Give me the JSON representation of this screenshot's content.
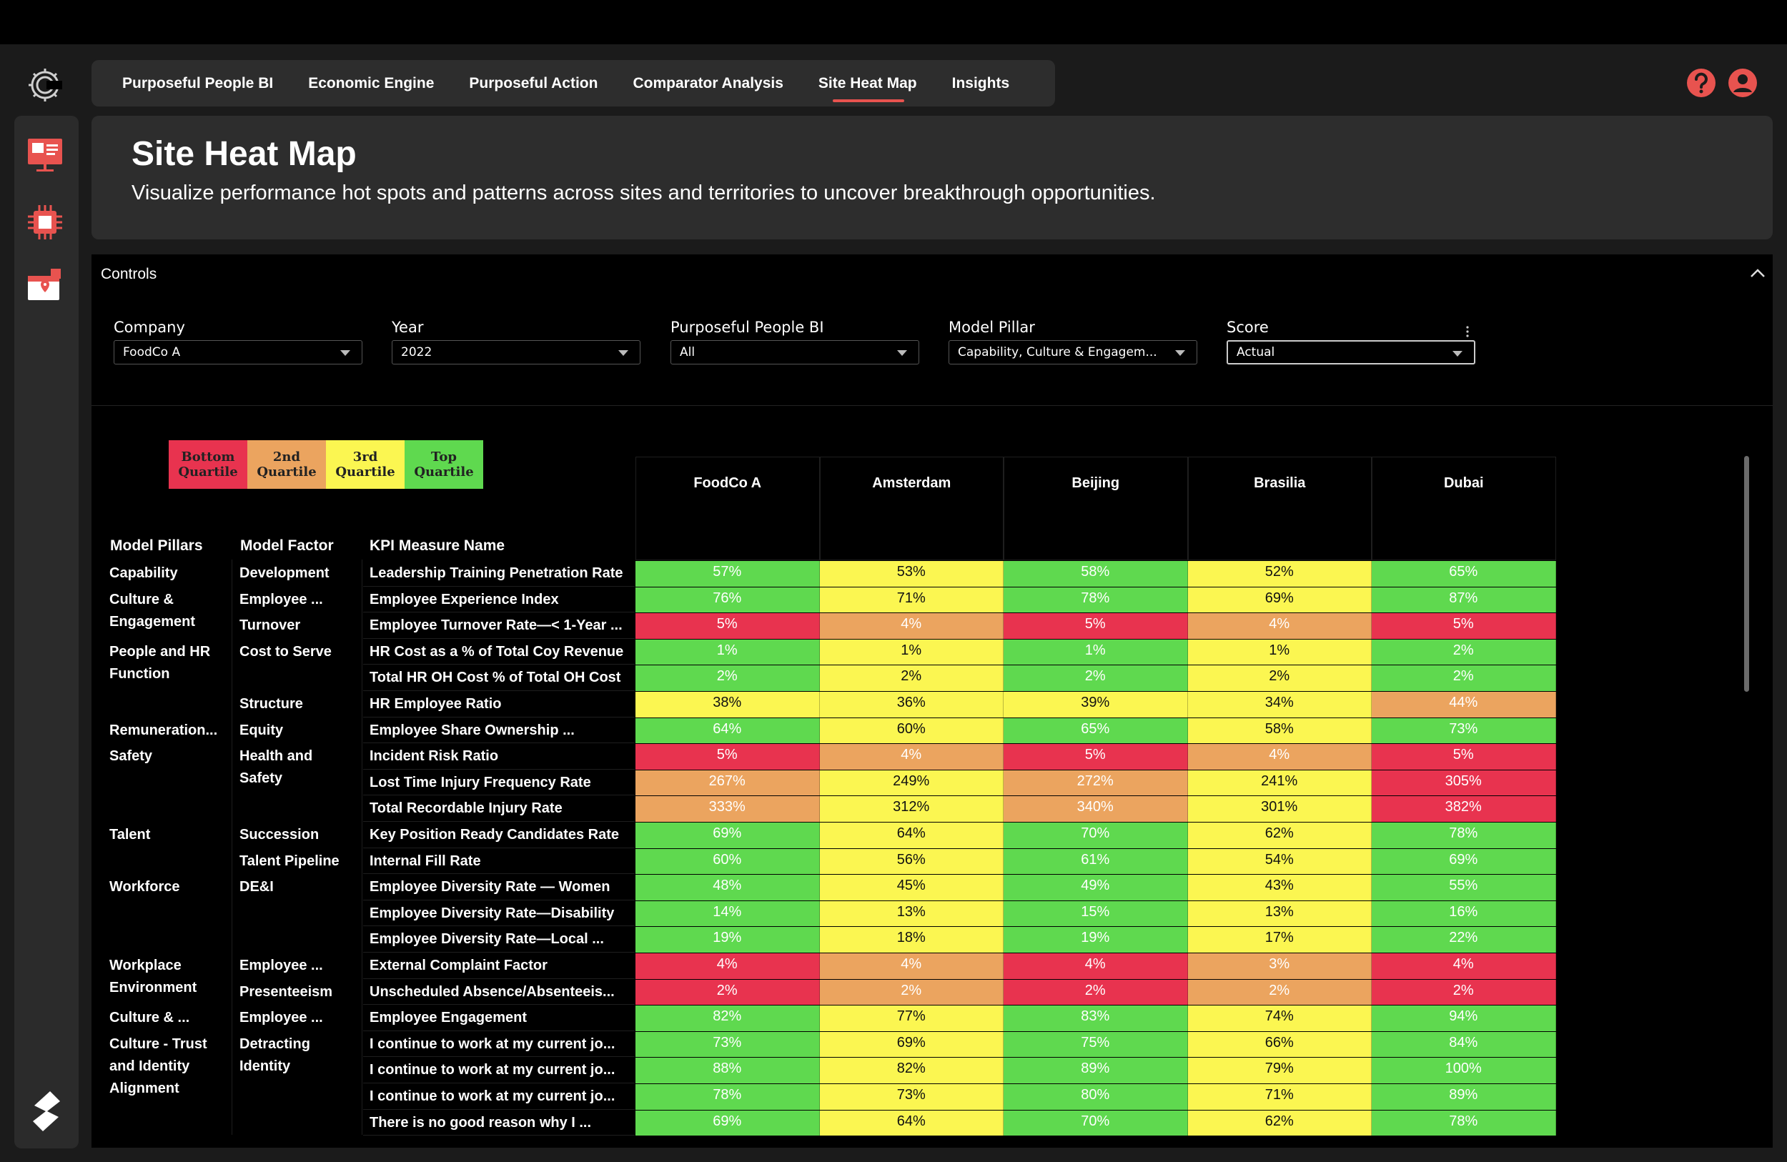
{
  "nav": {
    "tabs": [
      {
        "label": "Purposeful People BI"
      },
      {
        "label": "Economic Engine"
      },
      {
        "label": "Purposeful Action"
      },
      {
        "label": "Comparator Analysis"
      },
      {
        "label": "Site Heat Map",
        "active": true
      },
      {
        "label": "Insights"
      }
    ]
  },
  "header": {
    "title": "Site Heat Map",
    "subtitle": "Visualize performance hot spots and patterns across sites and territories to uncover breakthrough opportunities."
  },
  "controls": {
    "title": "Controls",
    "filters": [
      {
        "label": "Company",
        "value": "FoodCo A"
      },
      {
        "label": "Year",
        "value": "2022"
      },
      {
        "label": "Purposeful People BI",
        "value": "All"
      },
      {
        "label": "Model Pillar",
        "value": "Capability, Culture & Engagem..."
      },
      {
        "label": "Score",
        "value": "Actual"
      }
    ]
  },
  "legend": [
    {
      "label": "Bottom Quartile",
      "color": "#e8334f"
    },
    {
      "label": "2nd Quartile",
      "color": "#eba45f"
    },
    {
      "label": "3rd Quartile",
      "color": "#fbf651"
    },
    {
      "label": "Top Quartile",
      "color": "#5fd94f"
    }
  ],
  "table": {
    "headers": {
      "pillar": "Model Pillars",
      "factor": "Model Factor",
      "kpi": "KPI Measure Name"
    },
    "sites": [
      "FoodCo A",
      "Amsterdam",
      "Beijing",
      "Brasilia",
      "Dubai"
    ],
    "pillars": [
      {
        "label": "Capability",
        "row": 0,
        "lines": 1
      },
      {
        "label": "Culture & Engagement",
        "row": 1,
        "lines": 2
      },
      {
        "label": "People and HR Function",
        "row": 3,
        "lines": 2
      },
      {
        "label": "Remuneration...",
        "row": 6,
        "lines": 1
      },
      {
        "label": "Safety",
        "row": 7,
        "lines": 1
      },
      {
        "label": "Talent",
        "row": 10,
        "lines": 1
      },
      {
        "label": "Workforce",
        "row": 12,
        "lines": 1
      },
      {
        "label": "Workplace Environment",
        "row": 15,
        "lines": 2
      },
      {
        "label": "Culture & ...",
        "row": 17,
        "lines": 1
      },
      {
        "label": "Culture - Trust and Identity Alignment",
        "row": 18,
        "lines": 3
      }
    ],
    "factors": [
      {
        "label": "Development",
        "row": 0
      },
      {
        "label": "Employee ...",
        "row": 1
      },
      {
        "label": "Turnover",
        "row": 2
      },
      {
        "label": "Cost to Serve",
        "row": 3
      },
      {
        "label": "Structure",
        "row": 5
      },
      {
        "label": "Equity",
        "row": 6
      },
      {
        "label": "Health and Safety",
        "row": 7
      },
      {
        "label": "Succession",
        "row": 10
      },
      {
        "label": "Talent Pipeline",
        "row": 11
      },
      {
        "label": "DE&I",
        "row": 12
      },
      {
        "label": "Employee ...",
        "row": 15
      },
      {
        "label": "Presenteeism",
        "row": 16
      },
      {
        "label": "Employee ...",
        "row": 17
      },
      {
        "label": "Detracting Identity",
        "row": 18
      }
    ],
    "rows": [
      {
        "kpi": "Leadership Training Penetration Rate",
        "values": [
          "57%",
          "53%",
          "58%",
          "52%",
          "65%"
        ],
        "q": [
          4,
          3,
          4,
          3,
          4
        ]
      },
      {
        "kpi": "Employee Experience Index",
        "values": [
          "76%",
          "71%",
          "78%",
          "69%",
          "87%"
        ],
        "q": [
          4,
          3,
          4,
          3,
          4
        ]
      },
      {
        "kpi": "Employee Turnover Rate—< 1-Year ...",
        "values": [
          "5%",
          "4%",
          "5%",
          "4%",
          "5%"
        ],
        "q": [
          1,
          2,
          1,
          2,
          1
        ]
      },
      {
        "kpi": "HR Cost as a % of Total Coy Revenue",
        "values": [
          "1%",
          "1%",
          "1%",
          "1%",
          "2%"
        ],
        "q": [
          4,
          3,
          4,
          3,
          4
        ]
      },
      {
        "kpi": "Total HR OH Cost % of Total OH Cost",
        "values": [
          "2%",
          "2%",
          "2%",
          "2%",
          "2%"
        ],
        "q": [
          4,
          3,
          4,
          3,
          4
        ]
      },
      {
        "kpi": "HR Employee Ratio",
        "values": [
          "38%",
          "36%",
          "39%",
          "34%",
          "44%"
        ],
        "q": [
          3,
          3,
          3,
          3,
          2
        ]
      },
      {
        "kpi": "Employee Share Ownership ...",
        "values": [
          "64%",
          "60%",
          "65%",
          "58%",
          "73%"
        ],
        "q": [
          4,
          3,
          4,
          3,
          4
        ]
      },
      {
        "kpi": "Incident Risk Ratio",
        "values": [
          "5%",
          "4%",
          "5%",
          "4%",
          "5%"
        ],
        "q": [
          1,
          2,
          1,
          2,
          1
        ]
      },
      {
        "kpi": "Lost Time Injury Frequency Rate",
        "values": [
          "267%",
          "249%",
          "272%",
          "241%",
          "305%"
        ],
        "q": [
          2,
          3,
          2,
          3,
          1
        ]
      },
      {
        "kpi": "Total Recordable Injury Rate",
        "values": [
          "333%",
          "312%",
          "340%",
          "301%",
          "382%"
        ],
        "q": [
          2,
          3,
          2,
          3,
          1
        ]
      },
      {
        "kpi": "Key Position Ready Candidates Rate",
        "values": [
          "69%",
          "64%",
          "70%",
          "62%",
          "78%"
        ],
        "q": [
          4,
          3,
          4,
          3,
          4
        ]
      },
      {
        "kpi": "Internal Fill Rate",
        "values": [
          "60%",
          "56%",
          "61%",
          "54%",
          "69%"
        ],
        "q": [
          4,
          3,
          4,
          3,
          4
        ]
      },
      {
        "kpi": "Employee Diversity Rate — Women",
        "values": [
          "48%",
          "45%",
          "49%",
          "43%",
          "55%"
        ],
        "q": [
          4,
          3,
          4,
          3,
          4
        ]
      },
      {
        "kpi": "Employee Diversity Rate—Disability",
        "values": [
          "14%",
          "13%",
          "15%",
          "13%",
          "16%"
        ],
        "q": [
          4,
          3,
          4,
          3,
          4
        ]
      },
      {
        "kpi": "Employee Diversity Rate—Local ...",
        "values": [
          "19%",
          "18%",
          "19%",
          "17%",
          "22%"
        ],
        "q": [
          4,
          3,
          4,
          3,
          4
        ]
      },
      {
        "kpi": "External Complaint Factor",
        "values": [
          "4%",
          "4%",
          "4%",
          "3%",
          "4%"
        ],
        "q": [
          1,
          2,
          1,
          2,
          1
        ]
      },
      {
        "kpi": "Unscheduled Absence/Absenteeis...",
        "values": [
          "2%",
          "2%",
          "2%",
          "2%",
          "2%"
        ],
        "q": [
          1,
          2,
          1,
          2,
          1
        ]
      },
      {
        "kpi": "Employee Engagement",
        "values": [
          "82%",
          "77%",
          "83%",
          "74%",
          "94%"
        ],
        "q": [
          4,
          3,
          4,
          3,
          4
        ]
      },
      {
        "kpi": "I continue to work at my current jo...",
        "values": [
          "73%",
          "69%",
          "75%",
          "66%",
          "84%"
        ],
        "q": [
          4,
          3,
          4,
          3,
          4
        ]
      },
      {
        "kpi": "I continue to work at my current jo...",
        "values": [
          "88%",
          "82%",
          "89%",
          "79%",
          "100%"
        ],
        "q": [
          4,
          3,
          4,
          3,
          4
        ]
      },
      {
        "kpi": "I continue to work at my current jo...",
        "values": [
          "78%",
          "73%",
          "80%",
          "71%",
          "89%"
        ],
        "q": [
          4,
          3,
          4,
          3,
          4
        ]
      },
      {
        "kpi": "There is no good reason why I ...",
        "values": [
          "69%",
          "64%",
          "70%",
          "62%",
          "78%"
        ],
        "q": [
          4,
          3,
          4,
          3,
          4
        ]
      }
    ]
  }
}
